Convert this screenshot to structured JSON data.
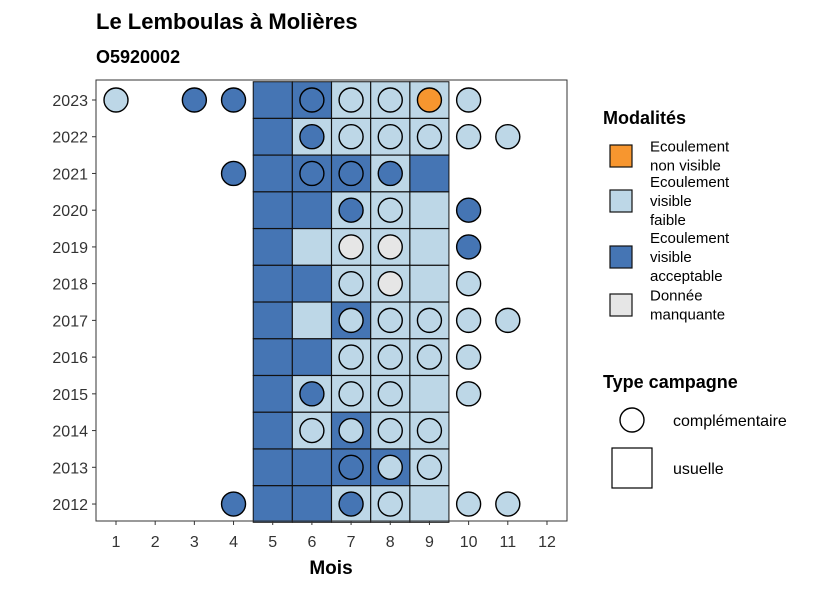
{
  "chart_data": {
    "type": "heatmap",
    "title": "Le Lemboulas à Molières",
    "subtitle": "O5920002",
    "xlabel": "Mois",
    "ylabel": "",
    "x_ticks": [
      "1",
      "2",
      "3",
      "4",
      "5",
      "6",
      "7",
      "8",
      "9",
      "10",
      "11",
      "12"
    ],
    "years": [
      "2023",
      "2022",
      "2021",
      "2020",
      "2019",
      "2018",
      "2017",
      "2016",
      "2015",
      "2014",
      "2013",
      "2012"
    ],
    "colors": {
      "Ecoulement non visible": "#f7962f",
      "Ecoulement visible faible": "#bdd7e7",
      "Ecoulement visible acceptable": "#4575b4",
      "Donnée manquante": "#e6e6e6"
    },
    "legend_modalites": {
      "title": "Modalités",
      "items": [
        {
          "lines": [
            "Ecoulement",
            "non visible"
          ],
          "color": "#f7962f"
        },
        {
          "lines": [
            "Ecoulement",
            "visible",
            "faible"
          ],
          "color": "#bdd7e7"
        },
        {
          "lines": [
            "Ecoulement",
            "visible",
            "acceptable"
          ],
          "color": "#4575b4"
        },
        {
          "lines": [
            "Donnée",
            "manquante"
          ],
          "color": "#e6e6e6"
        }
      ]
    },
    "legend_type": {
      "title": "Type campagne",
      "items": [
        "complémentaire",
        "usuelle"
      ]
    },
    "usuelle": [
      {
        "year": "2023",
        "month": 5,
        "m": "Ecoulement visible acceptable"
      },
      {
        "year": "2023",
        "month": 6,
        "m": "Ecoulement visible acceptable"
      },
      {
        "year": "2023",
        "month": 7,
        "m": "Ecoulement visible faible"
      },
      {
        "year": "2023",
        "month": 8,
        "m": "Ecoulement visible faible"
      },
      {
        "year": "2023",
        "month": 9,
        "m": "Ecoulement visible faible"
      },
      {
        "year": "2022",
        "month": 5,
        "m": "Ecoulement visible acceptable"
      },
      {
        "year": "2022",
        "month": 6,
        "m": "Ecoulement visible faible"
      },
      {
        "year": "2022",
        "month": 7,
        "m": "Ecoulement visible faible"
      },
      {
        "year": "2022",
        "month": 8,
        "m": "Ecoulement visible faible"
      },
      {
        "year": "2022",
        "month": 9,
        "m": "Ecoulement visible faible"
      },
      {
        "year": "2021",
        "month": 5,
        "m": "Ecoulement visible acceptable"
      },
      {
        "year": "2021",
        "month": 6,
        "m": "Ecoulement visible acceptable"
      },
      {
        "year": "2021",
        "month": 7,
        "m": "Ecoulement visible acceptable"
      },
      {
        "year": "2021",
        "month": 8,
        "m": "Ecoulement visible faible"
      },
      {
        "year": "2021",
        "month": 9,
        "m": "Ecoulement visible acceptable"
      },
      {
        "year": "2020",
        "month": 5,
        "m": "Ecoulement visible acceptable"
      },
      {
        "year": "2020",
        "month": 6,
        "m": "Ecoulement visible acceptable"
      },
      {
        "year": "2020",
        "month": 7,
        "m": "Ecoulement visible faible"
      },
      {
        "year": "2020",
        "month": 8,
        "m": "Ecoulement visible faible"
      },
      {
        "year": "2020",
        "month": 9,
        "m": "Ecoulement visible faible"
      },
      {
        "year": "2019",
        "month": 5,
        "m": "Ecoulement visible acceptable"
      },
      {
        "year": "2019",
        "month": 6,
        "m": "Ecoulement visible faible"
      },
      {
        "year": "2019",
        "month": 7,
        "m": "Ecoulement visible faible"
      },
      {
        "year": "2019",
        "month": 8,
        "m": "Ecoulement visible faible"
      },
      {
        "year": "2019",
        "month": 9,
        "m": "Ecoulement visible faible"
      },
      {
        "year": "2018",
        "month": 5,
        "m": "Ecoulement visible acceptable"
      },
      {
        "year": "2018",
        "month": 6,
        "m": "Ecoulement visible acceptable"
      },
      {
        "year": "2018",
        "month": 7,
        "m": "Ecoulement visible faible"
      },
      {
        "year": "2018",
        "month": 8,
        "m": "Ecoulement visible faible"
      },
      {
        "year": "2018",
        "month": 9,
        "m": "Ecoulement visible faible"
      },
      {
        "year": "2017",
        "month": 5,
        "m": "Ecoulement visible acceptable"
      },
      {
        "year": "2017",
        "month": 6,
        "m": "Ecoulement visible faible"
      },
      {
        "year": "2017",
        "month": 7,
        "m": "Ecoulement visible acceptable"
      },
      {
        "year": "2017",
        "month": 8,
        "m": "Ecoulement visible faible"
      },
      {
        "year": "2017",
        "month": 9,
        "m": "Ecoulement visible faible"
      },
      {
        "year": "2016",
        "month": 5,
        "m": "Ecoulement visible acceptable"
      },
      {
        "year": "2016",
        "month": 6,
        "m": "Ecoulement visible acceptable"
      },
      {
        "year": "2016",
        "month": 7,
        "m": "Ecoulement visible faible"
      },
      {
        "year": "2016",
        "month": 8,
        "m": "Ecoulement visible faible"
      },
      {
        "year": "2016",
        "month": 9,
        "m": "Ecoulement visible faible"
      },
      {
        "year": "2015",
        "month": 5,
        "m": "Ecoulement visible acceptable"
      },
      {
        "year": "2015",
        "month": 6,
        "m": "Ecoulement visible faible"
      },
      {
        "year": "2015",
        "month": 7,
        "m": "Ecoulement visible faible"
      },
      {
        "year": "2015",
        "month": 8,
        "m": "Ecoulement visible faible"
      },
      {
        "year": "2015",
        "month": 9,
        "m": "Ecoulement visible faible"
      },
      {
        "year": "2014",
        "month": 5,
        "m": "Ecoulement visible acceptable"
      },
      {
        "year": "2014",
        "month": 6,
        "m": "Ecoulement visible faible"
      },
      {
        "year": "2014",
        "month": 7,
        "m": "Ecoulement visible acceptable"
      },
      {
        "year": "2014",
        "month": 8,
        "m": "Ecoulement visible faible"
      },
      {
        "year": "2014",
        "month": 9,
        "m": "Ecoulement visible faible"
      },
      {
        "year": "2013",
        "month": 5,
        "m": "Ecoulement visible acceptable"
      },
      {
        "year": "2013",
        "month": 6,
        "m": "Ecoulement visible acceptable"
      },
      {
        "year": "2013",
        "month": 7,
        "m": "Ecoulement visible acceptable"
      },
      {
        "year": "2013",
        "month": 8,
        "m": "Ecoulement visible acceptable"
      },
      {
        "year": "2013",
        "month": 9,
        "m": "Ecoulement visible faible"
      },
      {
        "year": "2012",
        "month": 5,
        "m": "Ecoulement visible acceptable"
      },
      {
        "year": "2012",
        "month": 6,
        "m": "Ecoulement visible acceptable"
      },
      {
        "year": "2012",
        "month": 7,
        "m": "Ecoulement visible faible"
      },
      {
        "year": "2012",
        "month": 8,
        "m": "Ecoulement visible faible"
      },
      {
        "year": "2012",
        "month": 9,
        "m": "Ecoulement visible faible"
      }
    ],
    "complementaire": [
      {
        "year": "2023",
        "month": 1,
        "m": "Ecoulement visible faible"
      },
      {
        "year": "2023",
        "month": 3,
        "m": "Ecoulement visible acceptable"
      },
      {
        "year": "2023",
        "month": 4,
        "m": "Ecoulement visible acceptable"
      },
      {
        "year": "2023",
        "month": 6,
        "m": "Ecoulement visible acceptable"
      },
      {
        "year": "2023",
        "month": 7,
        "m": "Ecoulement visible faible"
      },
      {
        "year": "2023",
        "month": 8,
        "m": "Ecoulement visible faible"
      },
      {
        "year": "2023",
        "month": 9,
        "m": "Ecoulement non visible"
      },
      {
        "year": "2023",
        "month": 10,
        "m": "Ecoulement visible faible"
      },
      {
        "year": "2022",
        "month": 6,
        "m": "Ecoulement visible acceptable"
      },
      {
        "year": "2022",
        "month": 7,
        "m": "Ecoulement visible faible"
      },
      {
        "year": "2022",
        "month": 8,
        "m": "Ecoulement visible faible"
      },
      {
        "year": "2022",
        "month": 9,
        "m": "Ecoulement visible faible"
      },
      {
        "year": "2022",
        "month": 10,
        "m": "Ecoulement visible faible"
      },
      {
        "year": "2022",
        "month": 11,
        "m": "Ecoulement visible faible"
      },
      {
        "year": "2021",
        "month": 4,
        "m": "Ecoulement visible acceptable"
      },
      {
        "year": "2021",
        "month": 6,
        "m": "Ecoulement visible acceptable"
      },
      {
        "year": "2021",
        "month": 7,
        "m": "Ecoulement visible acceptable"
      },
      {
        "year": "2021",
        "month": 8,
        "m": "Ecoulement visible acceptable"
      },
      {
        "year": "2020",
        "month": 7,
        "m": "Ecoulement visible acceptable"
      },
      {
        "year": "2020",
        "month": 8,
        "m": "Ecoulement visible faible"
      },
      {
        "year": "2020",
        "month": 10,
        "m": "Ecoulement visible acceptable"
      },
      {
        "year": "2019",
        "month": 7,
        "m": "Donnée manquante"
      },
      {
        "year": "2019",
        "month": 8,
        "m": "Donnée manquante"
      },
      {
        "year": "2019",
        "month": 10,
        "m": "Ecoulement visible acceptable"
      },
      {
        "year": "2018",
        "month": 7,
        "m": "Ecoulement visible faible"
      },
      {
        "year": "2018",
        "month": 8,
        "m": "Donnée manquante"
      },
      {
        "year": "2018",
        "month": 10,
        "m": "Ecoulement visible faible"
      },
      {
        "year": "2017",
        "month": 7,
        "m": "Ecoulement visible faible"
      },
      {
        "year": "2017",
        "month": 8,
        "m": "Ecoulement visible faible"
      },
      {
        "year": "2017",
        "month": 9,
        "m": "Ecoulement visible faible"
      },
      {
        "year": "2017",
        "month": 10,
        "m": "Ecoulement visible faible"
      },
      {
        "year": "2017",
        "month": 11,
        "m": "Ecoulement visible faible"
      },
      {
        "year": "2016",
        "month": 7,
        "m": "Ecoulement visible faible"
      },
      {
        "year": "2016",
        "month": 8,
        "m": "Ecoulement visible faible"
      },
      {
        "year": "2016",
        "month": 9,
        "m": "Ecoulement visible faible"
      },
      {
        "year": "2016",
        "month": 10,
        "m": "Ecoulement visible faible"
      },
      {
        "year": "2015",
        "month": 6,
        "m": "Ecoulement visible acceptable"
      },
      {
        "year": "2015",
        "month": 7,
        "m": "Ecoulement visible faible"
      },
      {
        "year": "2015",
        "month": 8,
        "m": "Ecoulement visible faible"
      },
      {
        "year": "2015",
        "month": 10,
        "m": "Ecoulement visible faible"
      },
      {
        "year": "2014",
        "month": 6,
        "m": "Ecoulement visible faible"
      },
      {
        "year": "2014",
        "month": 7,
        "m": "Ecoulement visible faible"
      },
      {
        "year": "2014",
        "month": 8,
        "m": "Ecoulement visible faible"
      },
      {
        "year": "2014",
        "month": 9,
        "m": "Ecoulement visible faible"
      },
      {
        "year": "2013",
        "month": 7,
        "m": "Ecoulement visible acceptable"
      },
      {
        "year": "2013",
        "month": 8,
        "m": "Ecoulement visible faible"
      },
      {
        "year": "2013",
        "month": 9,
        "m": "Ecoulement visible faible"
      },
      {
        "year": "2012",
        "month": 4,
        "m": "Ecoulement visible acceptable"
      },
      {
        "year": "2012",
        "month": 7,
        "m": "Ecoulement visible acceptable"
      },
      {
        "year": "2012",
        "month": 8,
        "m": "Ecoulement visible faible"
      },
      {
        "year": "2012",
        "month": 10,
        "m": "Ecoulement visible faible"
      },
      {
        "year": "2012",
        "month": 11,
        "m": "Ecoulement visible faible"
      }
    ]
  }
}
